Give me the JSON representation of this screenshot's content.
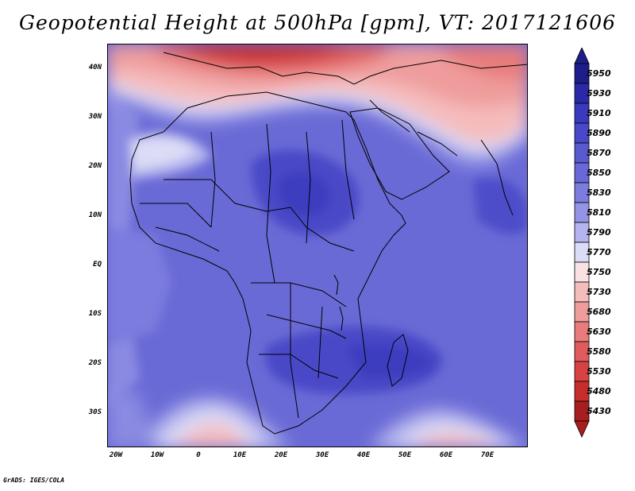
{
  "title": "Geopotential Height at 500hPa [gpm], VT: 2017121606",
  "footer": "GrADS: IGES/COLA",
  "axes": {
    "lat_labels": [
      "40N",
      "30N",
      "20N",
      "10N",
      "EQ",
      "10S",
      "20S",
      "30S"
    ],
    "lat_values": [
      40,
      30,
      20,
      10,
      0,
      -10,
      -20,
      -30
    ],
    "lon_labels": [
      "20W",
      "10W",
      "0",
      "10E",
      "20E",
      "30E",
      "40E",
      "50E",
      "60E",
      "70E"
    ],
    "lon_values": [
      -20,
      -10,
      0,
      10,
      20,
      30,
      40,
      50,
      60,
      70
    ]
  },
  "map": {
    "lon_range": [
      -22,
      80
    ],
    "lat_range": [
      -37,
      45
    ]
  },
  "colorbar": {
    "labels": [
      "5950",
      "5930",
      "5910",
      "5890",
      "5870",
      "5850",
      "5830",
      "5810",
      "5790",
      "5770",
      "5750",
      "5730",
      "5680",
      "5630",
      "5580",
      "5530",
      "5480",
      "5430"
    ],
    "colors": [
      "#1e1e8a",
      "#2a2aa8",
      "#3a3abf",
      "#4848c9",
      "#5a5ad0",
      "#6868d8",
      "#7c7cdf",
      "#9494e6",
      "#b4b4ee",
      "#dcdcf6",
      "#fbe2e2",
      "#f5bcbc",
      "#ef9c9c",
      "#e87c7c",
      "#e05c5c",
      "#d84242",
      "#c62e2e",
      "#a81e1e"
    ],
    "top_arrow_color": "#1e1e8a",
    "bottom_arrow_color": "#a81e1e"
  }
}
